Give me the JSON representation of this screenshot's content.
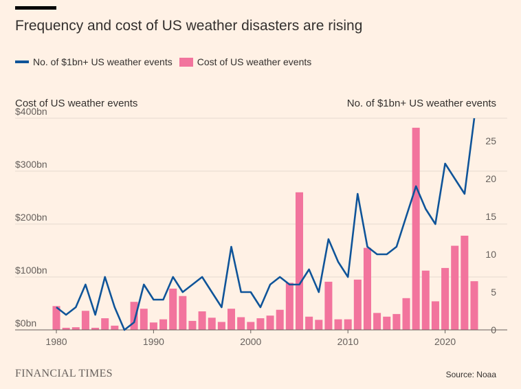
{
  "title": "Frequency and cost of US weather disasters are rising",
  "brand": "FINANCIAL TIMES",
  "source": "Source: Noaa",
  "chart_data": {
    "type": "bar",
    "title": "Frequency and cost of US weather disasters are rising",
    "left_axis_label": "Cost of US weather events",
    "right_axis_label": "No. of $1bn+ US weather events",
    "legend_placement": "top-left",
    "legend": [
      {
        "name": "No. of $1bn+ US weather events",
        "color": "#0f5499"
      },
      {
        "name": "Cost of US weather events",
        "color": "#f2749d"
      }
    ],
    "x": [
      1980,
      1981,
      1982,
      1983,
      1984,
      1985,
      1986,
      1987,
      1988,
      1989,
      1990,
      1991,
      1992,
      1993,
      1994,
      1995,
      1996,
      1997,
      1998,
      1999,
      2000,
      2001,
      2002,
      2003,
      2004,
      2005,
      2006,
      2007,
      2008,
      2009,
      2010,
      2011,
      2012,
      2013,
      2014,
      2015,
      2016,
      2017,
      2018,
      2019,
      2020,
      2021,
      2022,
      2023
    ],
    "x_ticks": [
      1980,
      1990,
      2000,
      2010,
      2020
    ],
    "x_tick_labels": [
      "1980",
      "1990",
      "2000",
      "2010",
      "2020"
    ],
    "ylim_left": [
      0,
      400
    ],
    "y_left_ticks": [
      0,
      100,
      200,
      300,
      400
    ],
    "y_left_tick_labels": [
      "$0bn",
      "$100bn",
      "$200bn",
      "$300bn",
      "$400bn"
    ],
    "ylim_right": [
      0,
      28
    ],
    "y_right_ticks": [
      0,
      5,
      10,
      15,
      20,
      25
    ],
    "y_right_tick_labels": [
      "0",
      "5",
      "10",
      "15",
      "20",
      "25"
    ],
    "grid": true,
    "series": [
      {
        "name": "Cost of US weather events",
        "type": "bar",
        "axis": "left",
        "color": "#f2749d",
        "values": [
          45,
          4,
          5,
          36,
          4,
          22,
          8,
          0,
          53,
          40,
          14,
          20,
          78,
          64,
          17,
          35,
          23,
          15,
          40,
          24,
          15,
          22,
          27,
          38,
          89,
          260,
          25,
          19,
          91,
          20,
          20,
          95,
          155,
          32,
          25,
          30,
          60,
          382,
          112,
          54,
          117,
          159,
          178,
          92
        ]
      },
      {
        "name": "No. of $1bn+ US weather events",
        "type": "line",
        "axis": "right",
        "color": "#0f5499",
        "values": [
          3,
          2,
          3,
          6,
          2,
          7,
          3,
          0,
          1,
          6,
          4,
          4,
          7,
          5,
          6,
          7,
          5,
          3,
          11,
          5,
          5,
          3,
          6,
          7,
          6,
          6,
          8,
          5,
          12,
          9,
          7,
          18,
          11,
          10,
          10,
          11,
          15,
          19,
          16,
          14,
          22,
          20,
          18,
          28
        ]
      }
    ]
  }
}
